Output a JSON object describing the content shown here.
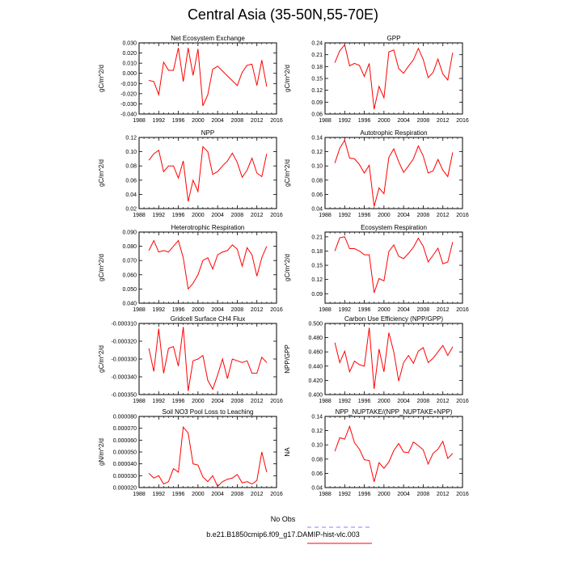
{
  "title": "Central Asia (35-50N,55-70E)",
  "legend": {
    "items": [
      {
        "label": "No Obs",
        "color": "#8080ff",
        "dashed": true
      },
      {
        "label": "b.e21.B1850cmip6.f09_g17.DAMIP-hist-vlc.003",
        "color": "#ff0000",
        "dashed": false
      }
    ]
  },
  "chart_data": [
    {
      "type": "line",
      "title": "Net Ecosystem Exchange",
      "ylabel": "gC/m^2/d",
      "xlabel": "",
      "xlim": [
        1988,
        2016
      ],
      "ylim": [
        -0.04,
        0.03
      ],
      "xticks": [
        "1988",
        "1992",
        "1996",
        "2000",
        "2004",
        "2008",
        "2012",
        "2016"
      ],
      "yticks": [
        "-0.040",
        "-0.030",
        "-0.020",
        "-0.010",
        "0.000",
        "0.010",
        "0.020",
        "0.030"
      ],
      "series": [
        {
          "color": "#ff0000",
          "x": [
            1990,
            1991,
            1992,
            1993,
            1994,
            1995,
            1996,
            1997,
            1998,
            1999,
            2000,
            2001,
            2002,
            2003,
            2004,
            2008,
            2009,
            2010,
            2011,
            2012,
            2013,
            2014
          ],
          "y": [
            -0.007,
            -0.008,
            -0.021,
            0.011,
            0.003,
            0.003,
            0.025,
            -0.008,
            0.025,
            -0.002,
            0.024,
            -0.032,
            -0.021,
            0.004,
            0.007,
            -0.012,
            0.001,
            0.008,
            0.009,
            -0.012,
            0.013,
            -0.013
          ]
        }
      ]
    },
    {
      "type": "line",
      "title": "GPP",
      "ylabel": "gC/m^2/d",
      "xlabel": "",
      "xlim": [
        1988,
        2016
      ],
      "ylim": [
        0.06,
        0.24
      ],
      "xticks": [
        "1988",
        "1992",
        "1996",
        "2000",
        "2004",
        "2008",
        "2012",
        "2016"
      ],
      "yticks": [
        "0.06",
        "0.09",
        "0.12",
        "0.15",
        "0.18",
        "0.21",
        "0.24"
      ],
      "series": [
        {
          "color": "#ff0000",
          "x": [
            1990,
            1991,
            1992,
            1993,
            1994,
            1995,
            1996,
            1997,
            1998,
            1999,
            2000,
            2001,
            2002,
            2003,
            2004,
            2005,
            2006,
            2007,
            2008,
            2009,
            2010,
            2011,
            2012,
            2013,
            2014
          ],
          "y": [
            0.19,
            0.22,
            0.235,
            0.182,
            0.188,
            0.183,
            0.155,
            0.188,
            0.072,
            0.13,
            0.101,
            0.217,
            0.222,
            0.175,
            0.163,
            0.181,
            0.197,
            0.226,
            0.198,
            0.152,
            0.165,
            0.199,
            0.161,
            0.146,
            0.215
          ]
        }
      ]
    },
    {
      "type": "line",
      "title": "NPP",
      "ylabel": "gC/m^2/d",
      "xlabel": "",
      "xlim": [
        1988,
        2016
      ],
      "ylim": [
        0.02,
        0.12
      ],
      "xticks": [
        "1988",
        "1992",
        "1996",
        "2000",
        "2004",
        "2008",
        "2012",
        "2016"
      ],
      "yticks": [
        "0.02",
        "0.04",
        "0.06",
        "0.08",
        "0.10",
        "0.12"
      ],
      "series": [
        {
          "color": "#ff0000",
          "x": [
            1990,
            1991,
            1992,
            1993,
            1994,
            1995,
            1996,
            1997,
            1998,
            1999,
            2000,
            2001,
            2002,
            2003,
            2004,
            2005,
            2006,
            2007,
            2008,
            2009,
            2010,
            2011,
            2012,
            2013,
            2014
          ],
          "y": [
            0.088,
            0.097,
            0.102,
            0.072,
            0.08,
            0.08,
            0.063,
            0.087,
            0.03,
            0.06,
            0.044,
            0.107,
            0.1,
            0.068,
            0.072,
            0.08,
            0.087,
            0.098,
            0.085,
            0.064,
            0.074,
            0.091,
            0.07,
            0.065,
            0.097
          ]
        }
      ]
    },
    {
      "type": "line",
      "title": "Autotrophic Respiration",
      "ylabel": "gC/m^2/d",
      "xlabel": "",
      "xlim": [
        1988,
        2016
      ],
      "ylim": [
        0.04,
        0.14
      ],
      "xticks": [
        "1988",
        "1992",
        "1996",
        "2000",
        "2004",
        "2008",
        "2012",
        "2016"
      ],
      "yticks": [
        "0.04",
        "0.06",
        "0.08",
        "0.10",
        "0.12",
        "0.14"
      ],
      "series": [
        {
          "color": "#ff0000",
          "x": [
            1990,
            1991,
            1992,
            1993,
            1994,
            1995,
            1996,
            1997,
            1998,
            1999,
            2000,
            2001,
            2002,
            2003,
            2004,
            2005,
            2006,
            2007,
            2008,
            2009,
            2010,
            2011,
            2012,
            2013,
            2014
          ],
          "y": [
            0.104,
            0.125,
            0.136,
            0.111,
            0.11,
            0.102,
            0.09,
            0.101,
            0.043,
            0.069,
            0.061,
            0.112,
            0.124,
            0.106,
            0.091,
            0.1,
            0.11,
            0.128,
            0.114,
            0.09,
            0.093,
            0.109,
            0.094,
            0.085,
            0.119
          ]
        }
      ]
    },
    {
      "type": "line",
      "title": "Heterotrophic Respiration",
      "ylabel": "gC/m^2/d",
      "xlabel": "",
      "xlim": [
        1988,
        2016
      ],
      "ylim": [
        0.04,
        0.09
      ],
      "xticks": [
        "1988",
        "1992",
        "1996",
        "2000",
        "2004",
        "2008",
        "2012",
        "2016"
      ],
      "yticks": [
        "0.040",
        "0.050",
        "0.060",
        "0.070",
        "0.080",
        "0.090"
      ],
      "series": [
        {
          "color": "#ff0000",
          "x": [
            1990,
            1991,
            1992,
            1993,
            1994,
            1995,
            1996,
            1997,
            1998,
            1999,
            2000,
            2001,
            2002,
            2003,
            2004,
            2005,
            2006,
            2007,
            2008,
            2009,
            2010,
            2011,
            2012,
            2013,
            2014
          ],
          "y": [
            0.077,
            0.084,
            0.076,
            0.077,
            0.076,
            0.08,
            0.084,
            0.072,
            0.05,
            0.054,
            0.06,
            0.07,
            0.072,
            0.064,
            0.074,
            0.076,
            0.077,
            0.081,
            0.078,
            0.066,
            0.079,
            0.074,
            0.059,
            0.072,
            0.08
          ]
        }
      ]
    },
    {
      "type": "line",
      "title": "Ecosystem Respiration",
      "ylabel": "gC/m^2/d",
      "xlabel": "",
      "xlim": [
        1988,
        2016
      ],
      "ylim": [
        0.07,
        0.22
      ],
      "xticks": [
        "1988",
        "1992",
        "1996",
        "2000",
        "2004",
        "2008",
        "2012",
        "2016"
      ],
      "yticks": [
        "0.09",
        "0.12",
        "0.15",
        "0.18",
        "0.21"
      ],
      "series": [
        {
          "color": "#ff0000",
          "x": [
            1990,
            1991,
            1992,
            1993,
            1994,
            1995,
            1996,
            1997,
            1998,
            1999,
            2000,
            2001,
            2002,
            2003,
            2004,
            2005,
            2006,
            2007,
            2008,
            2009,
            2010,
            2011,
            2012,
            2013,
            2014
          ],
          "y": [
            0.18,
            0.208,
            0.21,
            0.185,
            0.185,
            0.18,
            0.172,
            0.172,
            0.092,
            0.122,
            0.117,
            0.179,
            0.193,
            0.169,
            0.164,
            0.175,
            0.188,
            0.207,
            0.19,
            0.157,
            0.171,
            0.186,
            0.153,
            0.157,
            0.199
          ]
        }
      ]
    },
    {
      "type": "line",
      "title": "Gridcell Surface CH4 Flux",
      "ylabel": "gC/m^2/d",
      "xlabel": "",
      "xlim": [
        1988,
        2016
      ],
      "ylim": [
        -0.00035,
        -0.00031
      ],
      "xticks": [
        "1988",
        "1992",
        "1996",
        "2000",
        "2004",
        "2008",
        "2012",
        "2016"
      ],
      "yticks": [
        "-0.000350",
        "-0.000340",
        "-0.000330",
        "-0.000320",
        "-0.000310"
      ],
      "series": [
        {
          "color": "#ff0000",
          "x": [
            1990,
            1991,
            1992,
            1993,
            1994,
            1995,
            1996,
            1997,
            1998,
            1999,
            2000,
            2001,
            2002,
            2003,
            2004,
            2005,
            2006,
            2007,
            2008,
            2009,
            2010,
            2011,
            2012,
            2013,
            2014
          ],
          "y": [
            -0.000324,
            -0.000337,
            -0.000313,
            -0.000338,
            -0.000324,
            -0.000323,
            -0.000334,
            -0.000312,
            -0.000348,
            -0.000331,
            -0.00033,
            -0.000328,
            -0.000342,
            -0.000347,
            -0.000339,
            -0.00033,
            -0.000341,
            -0.00033,
            -0.000331,
            -0.000332,
            -0.000331,
            -0.000338,
            -0.000338,
            -0.000329,
            -0.000332
          ]
        }
      ]
    },
    {
      "type": "line",
      "title": "Carbon Use Efficiency (NPP/GPP)",
      "ylabel": "NPP/GPP",
      "xlabel": "",
      "xlim": [
        1988,
        2016
      ],
      "ylim": [
        0.4,
        0.5
      ],
      "xticks": [
        "1988",
        "1992",
        "1996",
        "2000",
        "2004",
        "2008",
        "2012",
        "2016"
      ],
      "yticks": [
        "0.400",
        "0.420",
        "0.440",
        "0.460",
        "0.480",
        "0.500"
      ],
      "series": [
        {
          "color": "#ff0000",
          "x": [
            1990,
            1991,
            1992,
            1993,
            1994,
            1995,
            1996,
            1997,
            1998,
            1999,
            2000,
            2001,
            2002,
            2003,
            2004,
            2005,
            2006,
            2007,
            2008,
            2009,
            2010,
            2011,
            2012,
            2013,
            2014
          ],
          "y": [
            0.473,
            0.445,
            0.461,
            0.432,
            0.447,
            0.442,
            0.44,
            0.494,
            0.408,
            0.464,
            0.432,
            0.487,
            0.46,
            0.419,
            0.445,
            0.455,
            0.444,
            0.461,
            0.466,
            0.445,
            0.451,
            0.46,
            0.469,
            0.455,
            0.467
          ]
        }
      ]
    },
    {
      "type": "line",
      "title": "Soil NO3 Pool Loss to Leaching",
      "ylabel": "gN/m^2/d",
      "xlabel": "",
      "xlim": [
        1988,
        2016
      ],
      "ylim": [
        2e-05,
        8e-05
      ],
      "xticks": [
        "1988",
        "1992",
        "1996",
        "2000",
        "2004",
        "2008",
        "2012",
        "2016"
      ],
      "yticks": [
        "0.000020",
        "0.000030",
        "0.000040",
        "0.000050",
        "0.000060",
        "0.000070",
        "0.000080"
      ],
      "series": [
        {
          "color": "#ff0000",
          "x": [
            1990,
            1991,
            1992,
            1993,
            1994,
            1995,
            1996,
            1997,
            1998,
            1999,
            2000,
            2001,
            2002,
            2003,
            2004,
            2005,
            2006,
            2007,
            2008,
            2009,
            2010,
            2011,
            2012,
            2013,
            2014
          ],
          "y": [
            3.2e-05,
            2.8e-05,
            3e-05,
            2.3e-05,
            2.5e-05,
            3.6e-05,
            3.3e-05,
            7.1e-05,
            6.6e-05,
            4e-05,
            3.9e-05,
            2.9e-05,
            2.5e-05,
            3e-05,
            2.1e-05,
            2.5e-05,
            2.7e-05,
            2.8e-05,
            3.1e-05,
            2.4e-05,
            2.5e-05,
            2.3e-05,
            2.6e-05,
            5e-05,
            3.3e-05
          ]
        }
      ]
    },
    {
      "type": "line",
      "title": "NPP_NUPTAKE/(NPP_NUPTAKE+NPP)",
      "ylabel": "NA",
      "xlabel": "",
      "xlim": [
        1988,
        2016
      ],
      "ylim": [
        0.04,
        0.14
      ],
      "xticks": [
        "1988",
        "1992",
        "1996",
        "2000",
        "2004",
        "2008",
        "2012",
        "2016"
      ],
      "yticks": [
        "0.04",
        "0.06",
        "0.08",
        "0.10",
        "0.12",
        "0.14"
      ],
      "series": [
        {
          "color": "#ff0000",
          "x": [
            1990,
            1991,
            1992,
            1993,
            1994,
            1995,
            1996,
            1997,
            1998,
            1999,
            2000,
            2001,
            2002,
            2003,
            2004,
            2005,
            2006,
            2007,
            2008,
            2009,
            2010,
            2011,
            2012,
            2013,
            2014
          ],
          "y": [
            0.091,
            0.11,
            0.108,
            0.126,
            0.103,
            0.094,
            0.079,
            0.078,
            0.048,
            0.075,
            0.067,
            0.076,
            0.092,
            0.102,
            0.09,
            0.089,
            0.104,
            0.099,
            0.093,
            0.073,
            0.088,
            0.094,
            0.105,
            0.081,
            0.088
          ]
        }
      ]
    }
  ]
}
